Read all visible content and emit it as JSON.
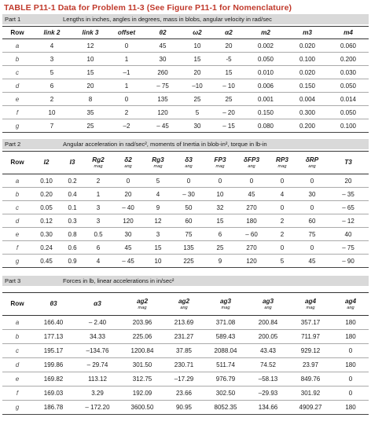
{
  "title": "TABLE P11-1   Data for Problem 11-3 (See Figure P11-1 for Nomenclature)",
  "part1": {
    "label": "Part 1",
    "description": "Lengths in inches, angles in degrees, mass in blobs, angular velocity in rad/sec",
    "headers": [
      "Row",
      "link 2",
      "link 3",
      "offset",
      "θ2",
      "ω2",
      "α2",
      "m2",
      "m3",
      "m4"
    ],
    "rows": [
      [
        "a",
        "4",
        "12",
        "0",
        "45",
        "10",
        "20",
        "0.002",
        "0.020",
        "0.060"
      ],
      [
        "b",
        "3",
        "10",
        "1",
        "30",
        "15",
        "-5",
        "0.050",
        "0.100",
        "0.200"
      ],
      [
        "c",
        "5",
        "15",
        "–1",
        "260",
        "20",
        "15",
        "0.010",
        "0.020",
        "0.030"
      ],
      [
        "d",
        "6",
        "20",
        "1",
        "– 75",
        "–10",
        "– 10",
        "0.006",
        "0.150",
        "0.050"
      ],
      [
        "e",
        "2",
        "8",
        "0",
        "135",
        "25",
        "25",
        "0.001",
        "0.004",
        "0.014"
      ],
      [
        "f",
        "10",
        "35",
        "2",
        "120",
        "5",
        "– 20",
        "0.150",
        "0.300",
        "0.050"
      ],
      [
        "g",
        "7",
        "25",
        "–2",
        "– 45",
        "30",
        "– 15",
        "0.080",
        "0.200",
        "0.100"
      ]
    ]
  },
  "part2": {
    "label": "Part 2",
    "description": "Angular acceleration in rad/sec², moments of Inertia in blob-in², torque in lb-in",
    "headers": [
      {
        "top": "Row",
        "sub": ""
      },
      {
        "top": "I2",
        "sub": ""
      },
      {
        "top": "I3",
        "sub": ""
      },
      {
        "top": "Rg2",
        "sub": "mag"
      },
      {
        "top": "δ2",
        "sub": "ang"
      },
      {
        "top": "Rg3",
        "sub": "mag"
      },
      {
        "top": "δ3",
        "sub": "ang"
      },
      {
        "top": "FP3",
        "sub": "mag"
      },
      {
        "top": "δFP3",
        "sub": "ang"
      },
      {
        "top": "RP3",
        "sub": "mag"
      },
      {
        "top": "δRP",
        "sub": "ang"
      },
      {
        "top": "T3",
        "sub": ""
      }
    ],
    "rows": [
      [
        "a",
        "0.10",
        "0.2",
        "2",
        "0",
        "5",
        "0",
        "0",
        "0",
        "0",
        "0",
        "20"
      ],
      [
        "b",
        "0.20",
        "0.4",
        "1",
        "20",
        "4",
        "– 30",
        "10",
        "45",
        "4",
        "30",
        "– 35"
      ],
      [
        "c",
        "0.05",
        "0.1",
        "3",
        "– 40",
        "9",
        "50",
        "32",
        "270",
        "0",
        "0",
        "– 65"
      ],
      [
        "d",
        "0.12",
        "0.3",
        "3",
        "120",
        "12",
        "60",
        "15",
        "180",
        "2",
        "60",
        "– 12"
      ],
      [
        "e",
        "0.30",
        "0.8",
        "0.5",
        "30",
        "3",
        "75",
        "6",
        "– 60",
        "2",
        "75",
        "40"
      ],
      [
        "f",
        "0.24",
        "0.6",
        "6",
        "45",
        "15",
        "135",
        "25",
        "270",
        "0",
        "0",
        "– 75"
      ],
      [
        "g",
        "0.45",
        "0.9",
        "4",
        "– 45",
        "10",
        "225",
        "9",
        "120",
        "5",
        "45",
        "– 90"
      ]
    ]
  },
  "part3": {
    "label": "Part 3",
    "description": "Forces in lb, linear accelerations in in/sec²",
    "headers": [
      {
        "top": "Row",
        "sub": ""
      },
      {
        "top": "θ3",
        "sub": ""
      },
      {
        "top": "α3",
        "sub": ""
      },
      {
        "top": "ag2",
        "sub": "mag"
      },
      {
        "top": "ag2",
        "sub": "ang"
      },
      {
        "top": "ag3",
        "sub": "mag"
      },
      {
        "top": "ag3",
        "sub": "ang"
      },
      {
        "top": "ag4",
        "sub": "mag"
      },
      {
        "top": "ag4",
        "sub": "ang"
      }
    ],
    "rows": [
      [
        "a",
        "166.40",
        "– 2.40",
        "203.96",
        "213.69",
        "371.08",
        "200.84",
        "357.17",
        "180"
      ],
      [
        "b",
        "177.13",
        "34.33",
        "225.06",
        "231.27",
        "589.43",
        "200.05",
        "711.97",
        "180"
      ],
      [
        "c",
        "195.17",
        "–134.76",
        "1200.84",
        "37.85",
        "2088.04",
        "43.43",
        "929.12",
        "0"
      ],
      [
        "d",
        "199.86",
        "– 29.74",
        "301.50",
        "230.71",
        "511.74",
        "74.52",
        "23.97",
        "180"
      ],
      [
        "e",
        "169.82",
        "113.12",
        "312.75",
        "–17.29",
        "976.79",
        "–58.13",
        "849.76",
        "0"
      ],
      [
        "f",
        "169.03",
        "3.29",
        "192.09",
        "23.66",
        "302.50",
        "–29.93",
        "301.92",
        "0"
      ],
      [
        "g",
        "186.78",
        "– 172.20",
        "3600.50",
        "90.95",
        "8052.35",
        "134.66",
        "4909.27",
        "180"
      ]
    ]
  }
}
